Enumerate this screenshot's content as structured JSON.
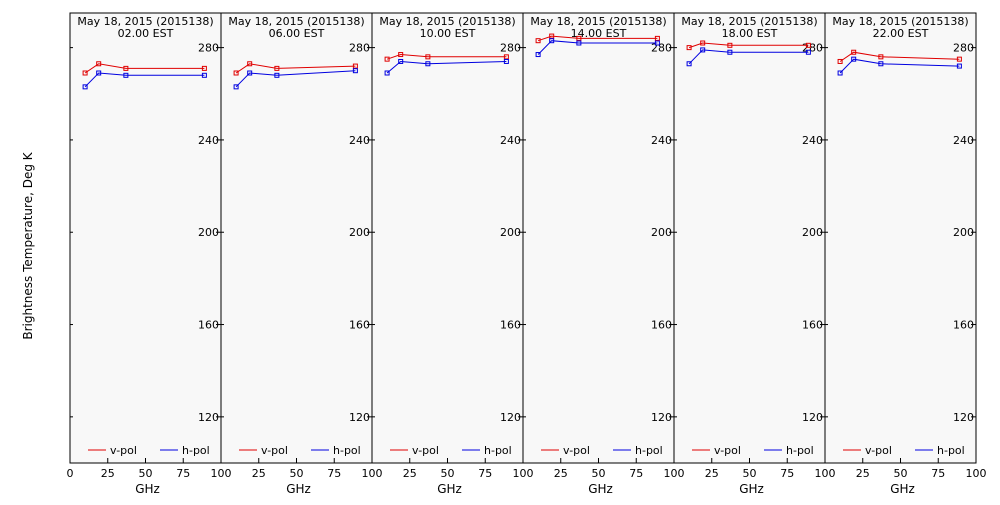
{
  "ylabel": "Brightness Temperature, Deg K",
  "colors": {
    "v_pol": "#e00000",
    "h_pol": "#0000e0",
    "axis": "#000000",
    "panel_bg": "#f8f8f8"
  },
  "chart_data": [
    {
      "type": "line",
      "title": "May 18, 2015 (2015138)",
      "subtitle": "02.00 EST",
      "xlabel": "GHz",
      "xlim": [
        0,
        100
      ],
      "ylim": [
        100,
        295
      ],
      "xticks": [
        0,
        25,
        50,
        75,
        100
      ],
      "xtick_labels": [
        "0",
        "25",
        "50",
        "75",
        "100"
      ],
      "yticks": [
        120,
        160,
        200,
        240,
        280
      ],
      "legend": "bottom",
      "series": [
        {
          "name": "v-pol",
          "x": [
            10,
            19,
            37,
            89
          ],
          "values": [
            269,
            273,
            271,
            271
          ]
        },
        {
          "name": "h-pol",
          "x": [
            10,
            19,
            37,
            89
          ],
          "values": [
            263,
            269,
            268,
            268
          ]
        }
      ]
    },
    {
      "type": "line",
      "title": "May 18, 2015 (2015138)",
      "subtitle": "06.00 EST",
      "xlabel": "GHz",
      "xlim": [
        0,
        100
      ],
      "ylim": [
        100,
        295
      ],
      "xticks": [
        0,
        25,
        50,
        75,
        100
      ],
      "xtick_labels": [
        "",
        "25",
        "50",
        "75",
        "100"
      ],
      "yticks": [
        120,
        160,
        200,
        240,
        280
      ],
      "legend": "bottom",
      "series": [
        {
          "name": "v-pol",
          "x": [
            10,
            19,
            37,
            89
          ],
          "values": [
            269,
            273,
            271,
            272
          ]
        },
        {
          "name": "h-pol",
          "x": [
            10,
            19,
            37,
            89
          ],
          "values": [
            263,
            269,
            268,
            270
          ]
        }
      ]
    },
    {
      "type": "line",
      "title": "May 18, 2015 (2015138)",
      "subtitle": "10.00 EST",
      "xlabel": "GHz",
      "xlim": [
        0,
        100
      ],
      "ylim": [
        100,
        295
      ],
      "xticks": [
        0,
        25,
        50,
        75,
        100
      ],
      "xtick_labels": [
        "",
        "25",
        "50",
        "75",
        "100"
      ],
      "yticks": [
        120,
        160,
        200,
        240,
        280
      ],
      "legend": "bottom",
      "series": [
        {
          "name": "v-pol",
          "x": [
            10,
            19,
            37,
            89
          ],
          "values": [
            275,
            277,
            276,
            276
          ]
        },
        {
          "name": "h-pol",
          "x": [
            10,
            19,
            37,
            89
          ],
          "values": [
            269,
            274,
            273,
            274
          ]
        }
      ]
    },
    {
      "type": "line",
      "title": "May 18, 2015 (2015138)",
      "subtitle": "14.00 EST",
      "xlabel": "GHz",
      "xlim": [
        0,
        100
      ],
      "ylim": [
        100,
        295
      ],
      "xticks": [
        0,
        25,
        50,
        75,
        100
      ],
      "xtick_labels": [
        "",
        "25",
        "50",
        "75",
        "100"
      ],
      "yticks": [
        120,
        160,
        200,
        240,
        280
      ],
      "legend": "bottom",
      "series": [
        {
          "name": "v-pol",
          "x": [
            10,
            19,
            37,
            89
          ],
          "values": [
            283,
            285,
            284,
            284
          ]
        },
        {
          "name": "h-pol",
          "x": [
            10,
            19,
            37,
            89
          ],
          "values": [
            277,
            283,
            282,
            282
          ]
        }
      ]
    },
    {
      "type": "line",
      "title": "May 18, 2015 (2015138)",
      "subtitle": "18.00 EST",
      "xlabel": "GHz",
      "xlim": [
        0,
        100
      ],
      "ylim": [
        100,
        295
      ],
      "xticks": [
        0,
        25,
        50,
        75,
        100
      ],
      "xtick_labels": [
        "",
        "25",
        "50",
        "75",
        "100"
      ],
      "yticks": [
        120,
        160,
        200,
        240,
        280
      ],
      "legend": "bottom",
      "series": [
        {
          "name": "v-pol",
          "x": [
            10,
            19,
            37,
            89
          ],
          "values": [
            280,
            282,
            281,
            281
          ]
        },
        {
          "name": "h-pol",
          "x": [
            10,
            19,
            37,
            89
          ],
          "values": [
            273,
            279,
            278,
            278
          ]
        }
      ]
    },
    {
      "type": "line",
      "title": "May 18, 2015 (2015138)",
      "subtitle": "22.00 EST",
      "xlabel": "GHz",
      "xlim": [
        0,
        100
      ],
      "ylim": [
        100,
        295
      ],
      "xticks": [
        0,
        25,
        50,
        75,
        100
      ],
      "xtick_labels": [
        "",
        "25",
        "50",
        "75",
        "100"
      ],
      "yticks": [
        120,
        160,
        200,
        240,
        280
      ],
      "legend": "bottom",
      "series": [
        {
          "name": "v-pol",
          "x": [
            10,
            19,
            37,
            89
          ],
          "values": [
            274,
            278,
            276,
            275
          ]
        },
        {
          "name": "h-pol",
          "x": [
            10,
            19,
            37,
            89
          ],
          "values": [
            269,
            275,
            273,
            272
          ]
        }
      ]
    }
  ]
}
